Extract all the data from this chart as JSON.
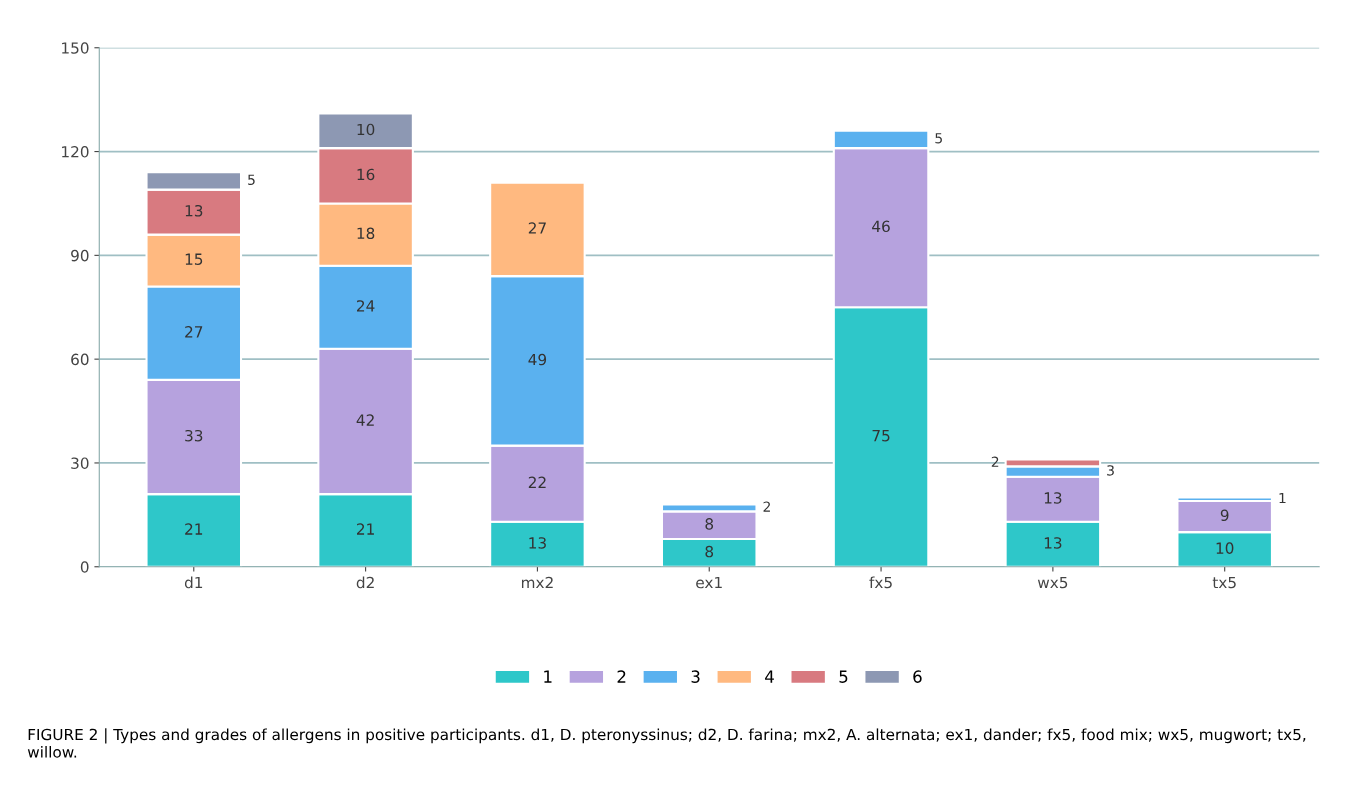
{
  "chart_data": {
    "type": "bar",
    "stacked": true,
    "categories": [
      "d1",
      "d2",
      "mx2",
      "ex1",
      "fx5",
      "wx5",
      "tx5"
    ],
    "series": [
      {
        "name": "1",
        "color": "#2ec7c9",
        "values": [
          21,
          21,
          13,
          8,
          75,
          13,
          10
        ]
      },
      {
        "name": "2",
        "color": "#b6a2de",
        "values": [
          33,
          42,
          22,
          8,
          46,
          13,
          9
        ]
      },
      {
        "name": "3",
        "color": "#5ab1ef",
        "values": [
          27,
          24,
          49,
          2,
          5,
          3,
          1
        ]
      },
      {
        "name": "4",
        "color": "#ffb980",
        "values": [
          15,
          18,
          27,
          null,
          null,
          null,
          null
        ]
      },
      {
        "name": "5",
        "color": "#d87a80",
        "values": [
          13,
          16,
          null,
          null,
          null,
          2,
          null
        ]
      },
      {
        "name": "6",
        "color": "#8d98b3",
        "values": [
          5,
          10,
          null,
          null,
          null,
          null,
          null
        ]
      }
    ],
    "ylim": [
      0,
      150
    ],
    "yticks": [
      0,
      30,
      60,
      90,
      120,
      150
    ],
    "grid": "y",
    "legend": "bottom",
    "data_labels": true,
    "annotations": [
      "FIGURE 2 | Types and grades of allergens in positive participants. d1, D. pteronyssinus; d2, D. farina; mx2, A. alternata; ex1, dander; fx5, food mix; wx5, mugwort; tx5, willow."
    ]
  }
}
